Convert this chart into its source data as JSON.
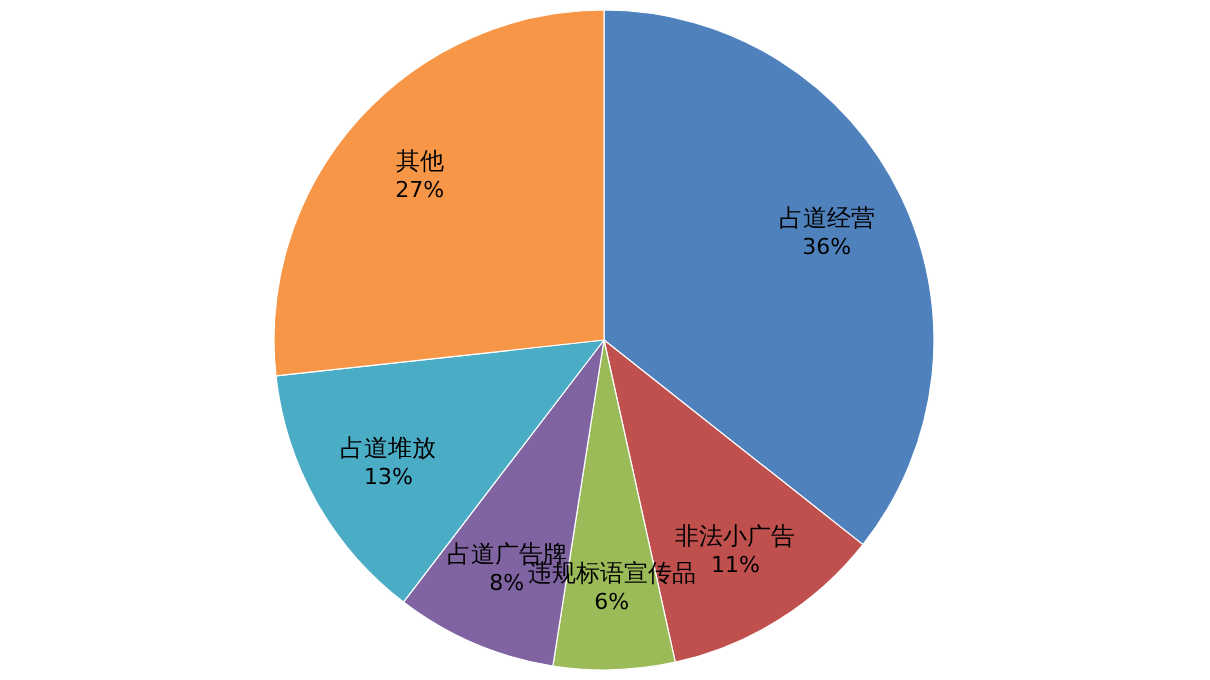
{
  "chart_data": {
    "type": "pie",
    "categories": [
      "占道经营",
      "非法小广告",
      "违规标语宣传品",
      "占道广告牌",
      "占道堆放",
      "其他"
    ],
    "values": [
      36,
      11,
      6,
      8,
      13,
      27
    ],
    "colors": [
      "#4f81bd",
      "#c0504d",
      "#9bbb59",
      "#8064a2",
      "#4bacc6",
      "#f79646"
    ],
    "value_labels": [
      "36%",
      "11%",
      "6%",
      "8%",
      "13%",
      "27%"
    ]
  }
}
